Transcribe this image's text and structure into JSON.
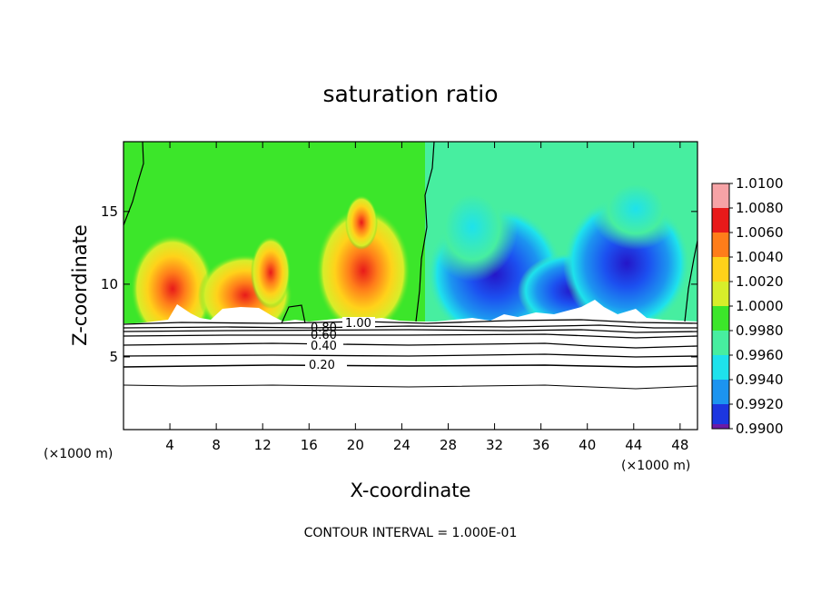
{
  "chart_data": {
    "type": "heatmap",
    "title": "saturation ratio",
    "xlabel": "X-coordinate",
    "ylabel": "Z-coordinate",
    "x_unit": "(×1000 m)",
    "x_ticks": [
      4,
      8,
      12,
      16,
      20,
      24,
      28,
      32,
      36,
      40,
      44,
      48
    ],
    "y_ticks": [
      5,
      10,
      15
    ],
    "xlim": [
      0,
      49.5
    ],
    "ylim": [
      0,
      19.8
    ],
    "contour_interval_text": "CONTOUR INTERVAL = 1.000E-01",
    "colorbar": {
      "levels": [
        "1.0100",
        "1.0080",
        "1.0060",
        "1.0040",
        "1.0020",
        "1.0000",
        "0.9980",
        "0.9960",
        "0.9940",
        "0.9920",
        "0.9900"
      ],
      "colors": [
        "#f6a3a6",
        "#e81a1a",
        "#ff7d1a",
        "#ffd21a",
        "#d7ee2a",
        "#3ce62a",
        "#47eea0",
        "#1ee2ec",
        "#1c94f0",
        "#1c36e0",
        "#6b1aa6"
      ]
    },
    "contour_labels": [
      "1.00",
      "0.80",
      "0.60",
      "0.40",
      "0.20"
    ],
    "contour_heights_km": [
      6.0,
      5.0,
      4.4,
      3.0
    ],
    "cloud_base_km": 7.3
  }
}
